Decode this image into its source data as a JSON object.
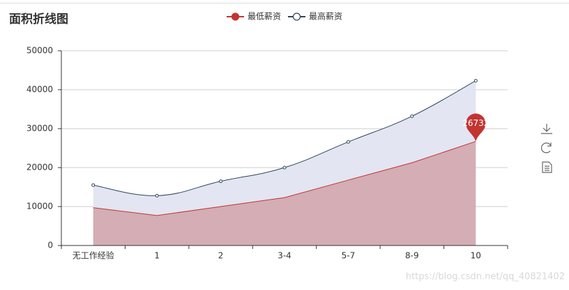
{
  "chart_data": {
    "type": "area",
    "title": "面积折线图",
    "categories": [
      "无工作经验",
      "1",
      "2",
      "3-4",
      "5-7",
      "8-9",
      "10"
    ],
    "series": [
      {
        "name": "最低薪资",
        "color": "#c23531",
        "fill": "#d4adb5",
        "smooth": false,
        "values": [
          9700,
          7700,
          10000,
          12300,
          16800,
          21250,
          26732
        ]
      },
      {
        "name": "最高薪资",
        "color": "#2f4554",
        "fill": "#e3e5f2",
        "smooth": true,
        "values": [
          15500,
          12800,
          16500,
          20000,
          26600,
          33200,
          42300
        ]
      }
    ],
    "ylim": [
      0,
      50000
    ],
    "yticks": [
      0,
      10000,
      20000,
      30000,
      40000,
      50000
    ],
    "grid": true,
    "watermark": "https://blog.csdn.net/qq_40821402"
  }
}
